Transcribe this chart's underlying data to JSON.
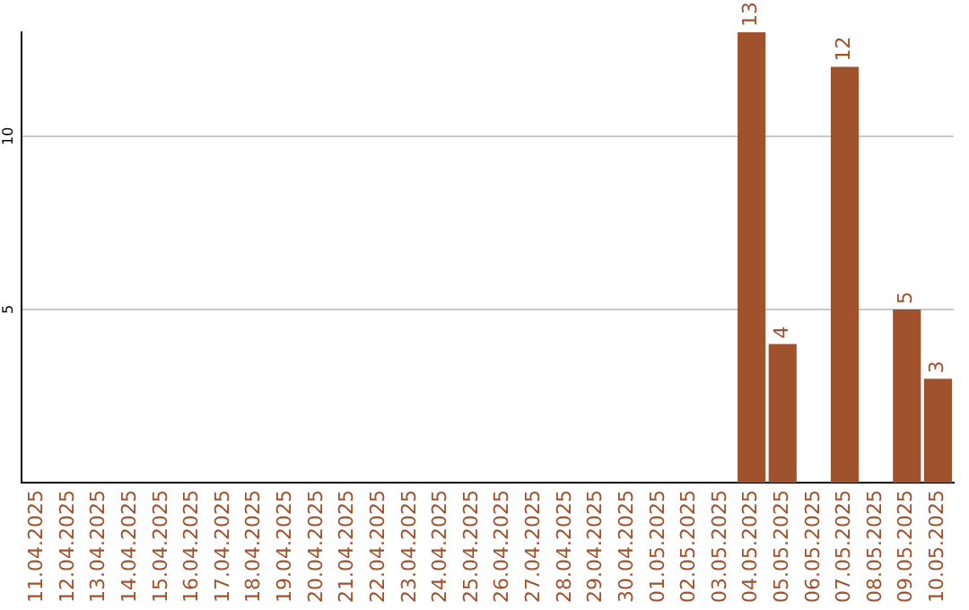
{
  "chart_data": {
    "type": "bar",
    "categories": [
      "11.04.2025",
      "12.04.2025",
      "13.04.2025",
      "14.04.2025",
      "15.04.2025",
      "16.04.2025",
      "17.04.2025",
      "18.04.2025",
      "19.04.2025",
      "20.04.2025",
      "21.04.2025",
      "22.04.2025",
      "23.04.2025",
      "24.04.2025",
      "25.04.2025",
      "26.04.2025",
      "27.04.2025",
      "28.04.2025",
      "29.04.2025",
      "30.04.2025",
      "01.05.2025",
      "02.05.2025",
      "03.05.2025",
      "04.05.2025",
      "05.05.2025",
      "06.05.2025",
      "07.05.2025",
      "08.05.2025",
      "09.05.2025",
      "10.05.2025"
    ],
    "values": [
      0,
      0,
      0,
      0,
      0,
      0,
      0,
      0,
      0,
      0,
      0,
      0,
      0,
      0,
      0,
      0,
      0,
      0,
      0,
      0,
      0,
      0,
      0,
      13,
      4,
      0,
      12,
      0,
      5,
      3
    ],
    "value_labels": [
      null,
      null,
      null,
      null,
      null,
      null,
      null,
      null,
      null,
      null,
      null,
      null,
      null,
      null,
      null,
      null,
      null,
      null,
      null,
      null,
      null,
      null,
      null,
      "13",
      "4",
      null,
      "12",
      null,
      "5",
      "3"
    ],
    "color": "#a0522d",
    "ylim": [
      0,
      13
    ],
    "yticks": [
      5,
      10
    ],
    "grid": "y"
  }
}
